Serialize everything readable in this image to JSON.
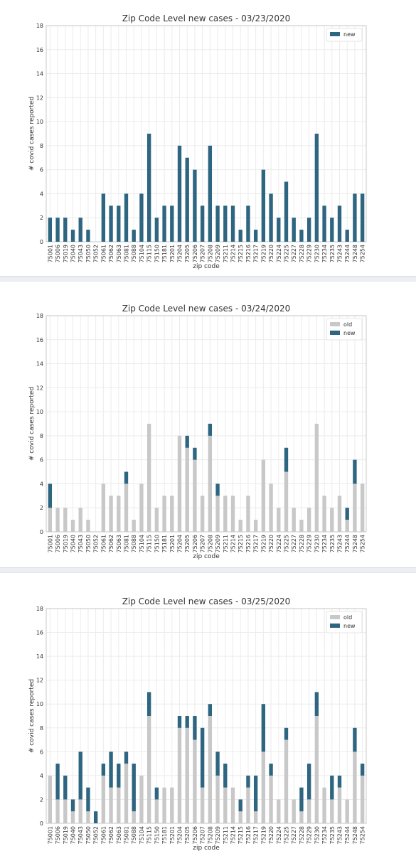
{
  "colors": {
    "old": "#c8c8c8",
    "new": "#2e6580",
    "grid": "#ececec",
    "axis": "#bbbbbb",
    "text": "#333333"
  },
  "chart_data": [
    {
      "type": "bar",
      "title": "Zip Code Level new cases - 03/23/2020",
      "xlabel": "zip code",
      "ylabel": "# covid cases reported",
      "ylim": [
        0,
        18
      ],
      "yticks": [
        0,
        2,
        4,
        6,
        8,
        10,
        12,
        14,
        16,
        18
      ],
      "grid": true,
      "legend": "top-right",
      "categories": [
        "75001",
        "75006",
        "75019",
        "75040",
        "75043",
        "75050",
        "75052",
        "75061",
        "75062",
        "75063",
        "75081",
        "75088",
        "75104",
        "75115",
        "75150",
        "75181",
        "75201",
        "75204",
        "75205",
        "75206",
        "75207",
        "75208",
        "75209",
        "75211",
        "75214",
        "75215",
        "75216",
        "75217",
        "75219",
        "75220",
        "75224",
        "75225",
        "75227",
        "75228",
        "75229",
        "75230",
        "75234",
        "75235",
        "75243",
        "75244",
        "75248",
        "75254"
      ],
      "series": [
        {
          "name": "new",
          "values": [
            2,
            2,
            2,
            1,
            2,
            1,
            0,
            4,
            3,
            3,
            4,
            1,
            4,
            9,
            2,
            3,
            3,
            8,
            7,
            6,
            3,
            8,
            3,
            3,
            3,
            1,
            3,
            1,
            6,
            4,
            2,
            5,
            2,
            1,
            2,
            9,
            3,
            2,
            3,
            1,
            4,
            4
          ]
        }
      ]
    },
    {
      "type": "bar",
      "title": "Zip Code Level new cases - 03/24/2020",
      "xlabel": "zip code",
      "ylabel": "# covid cases reported",
      "ylim": [
        0,
        18
      ],
      "yticks": [
        0,
        2,
        4,
        6,
        8,
        10,
        12,
        14,
        16,
        18
      ],
      "grid": true,
      "legend": "top-right",
      "stacked": true,
      "categories": [
        "75001",
        "75006",
        "75019",
        "75040",
        "75043",
        "75050",
        "75052",
        "75061",
        "75062",
        "75063",
        "75081",
        "75088",
        "75104",
        "75115",
        "75150",
        "75181",
        "75201",
        "75204",
        "75205",
        "75206",
        "75207",
        "75208",
        "75209",
        "75211",
        "75214",
        "75215",
        "75216",
        "75217",
        "75219",
        "75220",
        "75224",
        "75225",
        "75227",
        "75228",
        "75229",
        "75230",
        "75234",
        "75235",
        "75243",
        "75244",
        "75248",
        "75254"
      ],
      "series": [
        {
          "name": "old",
          "values": [
            2,
            2,
            2,
            1,
            2,
            1,
            0,
            4,
            3,
            3,
            4,
            1,
            4,
            9,
            2,
            3,
            3,
            8,
            7,
            6,
            3,
            8,
            3,
            3,
            3,
            1,
            3,
            1,
            6,
            4,
            2,
            5,
            2,
            1,
            2,
            9,
            3,
            2,
            3,
            1,
            4,
            4
          ]
        },
        {
          "name": "new",
          "values": [
            2,
            0,
            0,
            0,
            0,
            0,
            0,
            0,
            0,
            0,
            1,
            0,
            0,
            0,
            0,
            0,
            0,
            0,
            1,
            1,
            0,
            1,
            1,
            0,
            0,
            0,
            0,
            0,
            0,
            0,
            0,
            2,
            0,
            0,
            0,
            0,
            0,
            0,
            0,
            1,
            2,
            0
          ]
        }
      ]
    },
    {
      "type": "bar",
      "title": "Zip Code Level new cases - 03/25/2020",
      "xlabel": "zip code",
      "ylabel": "# covid cases reported",
      "ylim": [
        0,
        18
      ],
      "yticks": [
        0,
        2,
        4,
        6,
        8,
        10,
        12,
        14,
        16,
        18
      ],
      "grid": true,
      "legend": "top-right",
      "stacked": true,
      "categories": [
        "75001",
        "75006",
        "75019",
        "75040",
        "75043",
        "75050",
        "75052",
        "75061",
        "75062",
        "75063",
        "75081",
        "75088",
        "75104",
        "75115",
        "75150",
        "75181",
        "75201",
        "75204",
        "75205",
        "75206",
        "75207",
        "75208",
        "75209",
        "75211",
        "75214",
        "75215",
        "75216",
        "75217",
        "75219",
        "75220",
        "75224",
        "75225",
        "75227",
        "75228",
        "75229",
        "75230",
        "75234",
        "75235",
        "75243",
        "75244",
        "75248",
        "75254"
      ],
      "series": [
        {
          "name": "old",
          "values": [
            4,
            2,
            2,
            1,
            2,
            1,
            0,
            4,
            3,
            3,
            5,
            1,
            4,
            9,
            2,
            3,
            3,
            8,
            8,
            7,
            3,
            9,
            4,
            3,
            3,
            1,
            3,
            1,
            6,
            4,
            2,
            7,
            2,
            1,
            2,
            9,
            3,
            2,
            3,
            2,
            6,
            4
          ]
        },
        {
          "name": "new",
          "values": [
            0,
            3,
            2,
            1,
            4,
            2,
            1,
            1,
            3,
            2,
            1,
            4,
            0,
            2,
            1,
            0,
            0,
            1,
            1,
            2,
            5,
            1,
            2,
            2,
            0,
            1,
            1,
            3,
            4,
            1,
            0,
            1,
            0,
            2,
            3,
            2,
            0,
            2,
            1,
            0,
            2,
            1
          ]
        }
      ]
    }
  ]
}
